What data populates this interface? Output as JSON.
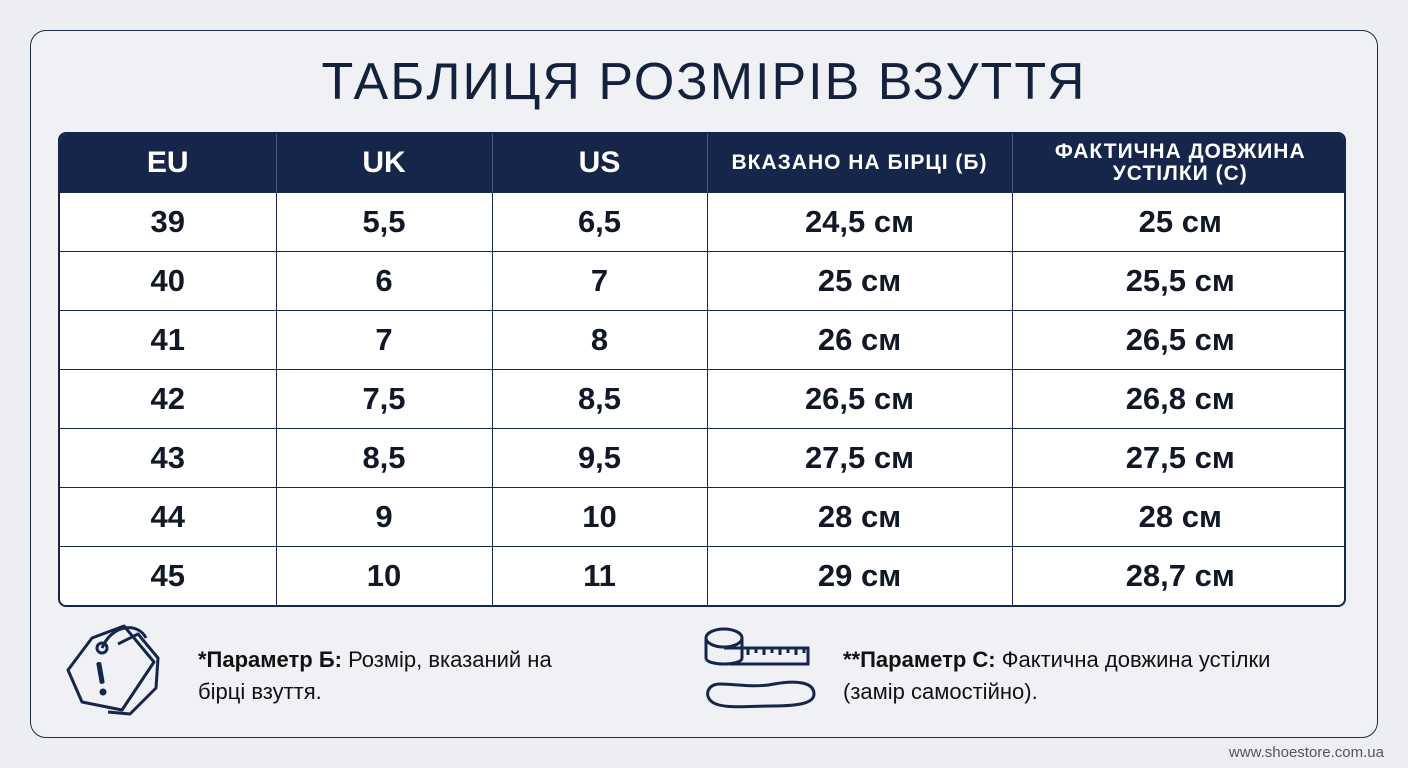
{
  "title": "ТАБЛИЦЯ РОЗМІРІВ ВЗУТТЯ",
  "table": {
    "header": [
      "EU",
      "UK",
      "US",
      "ВКАЗАНО НА БІРЦІ (Б)",
      "ФАКТИЧНА ДОВЖИНА УСТІЛКИ (С)"
    ],
    "rows": [
      [
        "39",
        "5,5",
        "6,5",
        "24,5 см",
        "25 см"
      ],
      [
        "40",
        "6",
        "7",
        "25 см",
        "25,5 см"
      ],
      [
        "41",
        "7",
        "8",
        "26 см",
        "26,5 см"
      ],
      [
        "42",
        "7,5",
        "8,5",
        "26,5 см",
        "26,8 см"
      ],
      [
        "43",
        "8,5",
        "9,5",
        "27,5 см",
        "27,5 см"
      ],
      [
        "44",
        "9",
        "10",
        "28 см",
        "28 см"
      ],
      [
        "45",
        "10",
        "11",
        "29 см",
        "28,7 см"
      ]
    ]
  },
  "notes": [
    {
      "label": "*Параметр Б:",
      "text": "Розмір, вказаний на бірці взуття."
    },
    {
      "label": "**Параметр С:",
      "text": "Фактична довжина устілки (замір самостійно)."
    }
  ],
  "footer": "www.shoestore.com.ua"
}
